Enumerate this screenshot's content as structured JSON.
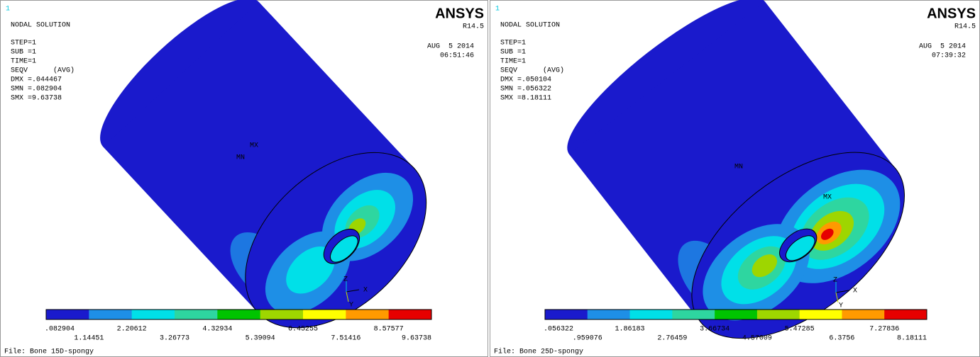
{
  "panels": [
    {
      "corner_number": "1",
      "title": "NODAL SOLUTION",
      "info": [
        "STEP=1",
        "SUB =1",
        "TIME=1",
        "SEQV      (AVG)",
        "DMX =.044467",
        "SMN =.082904",
        "SMX =9.63738"
      ],
      "logo": "ANSYS",
      "version": "R14.5",
      "date": "AUG  5 2014",
      "time": "06:51:46",
      "mx_label": "MX",
      "mn_label": "MN",
      "axes": [
        "Z",
        "Y",
        "X"
      ],
      "legend": [
        ".082904",
        "1.14451",
        "2.20612",
        "3.26773",
        "4.32934",
        "5.39094",
        "6.45255",
        "7.51416",
        "8.57577",
        "9.63738"
      ],
      "file": "File: Bone 15D-spongy"
    },
    {
      "corner_number": "1",
      "title": "NODAL SOLUTION",
      "info": [
        "STEP=1",
        "SUB =1",
        "TIME=1",
        "SEQV      (AVG)",
        "DMX =.050104",
        "SMN =.056322",
        "SMX =8.18111"
      ],
      "logo": "ANSYS",
      "version": "R14.5",
      "date": "AUG  5 2014",
      "time": "07:39:32",
      "mx_label": "MX",
      "mn_label": "MN",
      "axes": [
        "Z",
        "Y",
        "X"
      ],
      "legend": [
        ".056322",
        ".959076",
        "1.86183",
        "2.76459",
        "3.66734",
        "4.57009",
        "5.47285",
        "6.3756",
        "7.27836",
        "8.18111"
      ],
      "file": "File: Bone 25D-spongy"
    }
  ]
}
